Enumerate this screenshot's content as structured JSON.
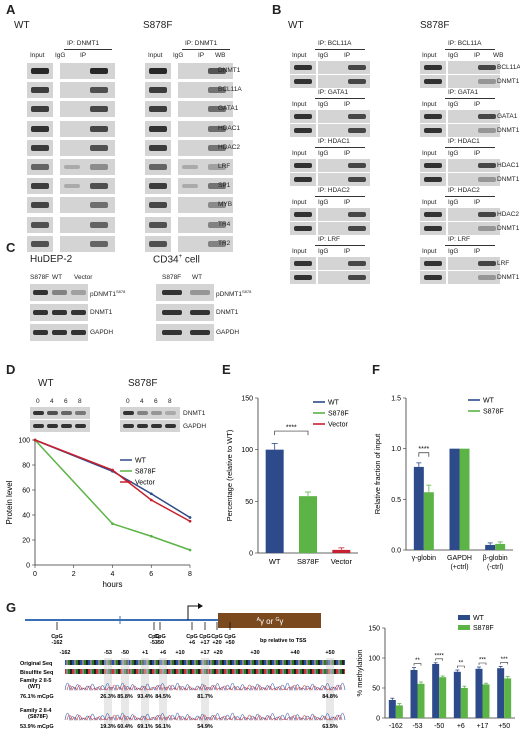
{
  "panelA": {
    "letter": "A",
    "wt_title": "WT",
    "mut_title": "S878F",
    "ip_label": "IP: DNMT1",
    "lanes": [
      "Input",
      "IgG",
      "IP"
    ],
    "wb_label": "WB",
    "rows": [
      "DNMT1",
      "BCL11A",
      "GATA1",
      "HDAC1",
      "HDAC2",
      "LRF",
      "SP1",
      "MYB",
      "TR4",
      "TR2"
    ]
  },
  "panelB": {
    "letter": "B",
    "wt_title": "WT",
    "mut_title": "S878F",
    "wb_label": "WB",
    "lanes": [
      "Input",
      "IgG",
      "IP"
    ],
    "blocks": [
      {
        "ip": "IP: BCL11A",
        "rows": [
          "BCL11A",
          "DNMT1"
        ]
      },
      {
        "ip": "IP: GATA1",
        "rows": [
          "GATA1",
          "DNMT1"
        ]
      },
      {
        "ip": "IP: HDAC1",
        "rows": [
          "HDAC1",
          "DNMT1"
        ]
      },
      {
        "ip": "IP: HDAC2",
        "rows": [
          "HDAC2",
          "DNMT1"
        ]
      },
      {
        "ip": "IP: LRF",
        "rows": [
          "LRF",
          "DNMT1"
        ]
      }
    ]
  },
  "panelC": {
    "letter": "C",
    "left_title": "HuDEP-2",
    "right_title": "CD34",
    "right_title_sup": "+",
    "right_title_suffix": " cell",
    "left_lanes": [
      "S878F",
      "WT",
      "Vector"
    ],
    "right_lanes": [
      "S878F",
      "WT"
    ],
    "rows": [
      "pDNMT1",
      "DNMT1",
      "GAPDH"
    ],
    "pdnmt1_sup": "S878"
  },
  "panelD": {
    "letter": "D",
    "wt_title": "WT",
    "mut_title": "S878F",
    "times": [
      "0",
      "4",
      "6",
      "8"
    ],
    "rows": [
      "DNMT1",
      "GAPDH"
    ],
    "chart_data": {
      "type": "line",
      "ylabel": "Protein level",
      "xlabel": "hours",
      "xlim": [
        0,
        8
      ],
      "ylim": [
        0,
        100
      ],
      "xticks": [
        "0",
        "2",
        "4",
        "6",
        "8"
      ],
      "yticks": [
        "0",
        "20",
        "40",
        "60",
        "80",
        "100"
      ],
      "x": [
        0,
        4,
        6,
        8
      ],
      "series": [
        {
          "name": "WT",
          "color": "#2d4a8a",
          "values": [
            100,
            75,
            57,
            38
          ]
        },
        {
          "name": "S878F",
          "color": "#5cb346",
          "values": [
            100,
            33,
            23,
            12
          ]
        },
        {
          "name": "Vector",
          "color": "#c8202e",
          "values": [
            100,
            76,
            52,
            35
          ]
        }
      ]
    }
  },
  "panelE": {
    "letter": "E",
    "chart_data": {
      "type": "bar",
      "ylabel": "Percentage (relative to WT)",
      "categories": [
        "WT",
        "S878F",
        "Vector"
      ],
      "values": [
        100,
        55,
        3
      ],
      "errors": [
        6,
        4,
        2
      ],
      "colors": [
        "#2d4a8a",
        "#5cb346",
        "#c8202e"
      ],
      "ylim": [
        0,
        150
      ],
      "yticks": [
        "0",
        "50",
        "100",
        "150"
      ],
      "significance": "****",
      "legend": [
        {
          "name": "WT",
          "color": "#2d4a8a"
        },
        {
          "name": "S878F",
          "color": "#5cb346"
        },
        {
          "name": "Vector",
          "color": "#c8202e"
        }
      ]
    }
  },
  "panelF": {
    "letter": "F",
    "chart_data": {
      "type": "bar",
      "ylabel": "Relative fraction of input",
      "categories": [
        "γ-globin",
        "GAPDH",
        "β-globin"
      ],
      "subcategories": [
        "",
        "(+ctrl)",
        "(-ctrl)"
      ],
      "series": [
        {
          "name": "WT",
          "color": "#2d4a8a",
          "values": [
            0.82,
            1.0,
            0.05
          ],
          "errors": [
            0.04,
            0,
            0.02
          ]
        },
        {
          "name": "S878F",
          "color": "#5cb346",
          "values": [
            0.57,
            1.0,
            0.06
          ],
          "errors": [
            0.07,
            0,
            0.02
          ]
        }
      ],
      "ylim": [
        0,
        1.5
      ],
      "yticks": [
        "0.0",
        "0.5",
        "1.0",
        "1.5"
      ],
      "significance": "****"
    }
  },
  "panelG": {
    "letter": "G",
    "gene_label": "Aγ or Gγ",
    "gene_sup_a": "A",
    "gene_sup_g": "G",
    "gene_mid": "γ or ",
    "gene_end": "γ",
    "cpg_sites": [
      "CpG -162",
      "CpG -53",
      "CpG -50",
      "CpG +6",
      "CpG +17",
      "CpG +20",
      "CpG +50"
    ],
    "cpg_top": "CpG",
    "cpg_nums": [
      "-162",
      "-53",
      "-50",
      "+6",
      "+17",
      "+20",
      "+50"
    ],
    "bp_label": "bp relative to TSS",
    "seq_rows": [
      "Original Seq",
      "Bisulfite Seq"
    ],
    "ruler": [
      "-162",
      "-53",
      "-50",
      "+1",
      "+6",
      "+10",
      "+17",
      "+20",
      "+30",
      "+40",
      "+50"
    ],
    "family1": {
      "name": "Family 2 II-5",
      "sub": "(WT)",
      "mcpg": "76.1% mCpG",
      "pcts": [
        "26.3%",
        "85.8%",
        "93.4%",
        "84.5%",
        "81.7%",
        "84.8%"
      ]
    },
    "family2": {
      "name": "Family 2 II-4",
      "sub": "(S878F)",
      "mcpg": "53.9% mCpG",
      "pcts": [
        "19.3%",
        "60.4%",
        "69.1%",
        "56.1%",
        "54.9%",
        "63.5%"
      ]
    },
    "chart_data": {
      "type": "bar",
      "ylabel": "% methylation",
      "categories": [
        "-162",
        "-53",
        "-50",
        "+6",
        "+17",
        "+50"
      ],
      "series": [
        {
          "name": "WT",
          "color": "#2d4a8a",
          "values": [
            30,
            80,
            90,
            77,
            82,
            83
          ],
          "errors": [
            3,
            4,
            2,
            3,
            3,
            3
          ]
        },
        {
          "name": "S878F",
          "color": "#5cb346",
          "values": [
            21,
            57,
            68,
            50,
            56,
            66
          ],
          "errors": [
            3,
            3,
            2,
            3,
            2,
            3
          ]
        }
      ],
      "ylim": [
        0,
        150
      ],
      "yticks": [
        "0",
        "50",
        "100",
        "150"
      ],
      "significance": [
        "",
        "**",
        "****",
        "**",
        "***",
        "***"
      ]
    }
  }
}
